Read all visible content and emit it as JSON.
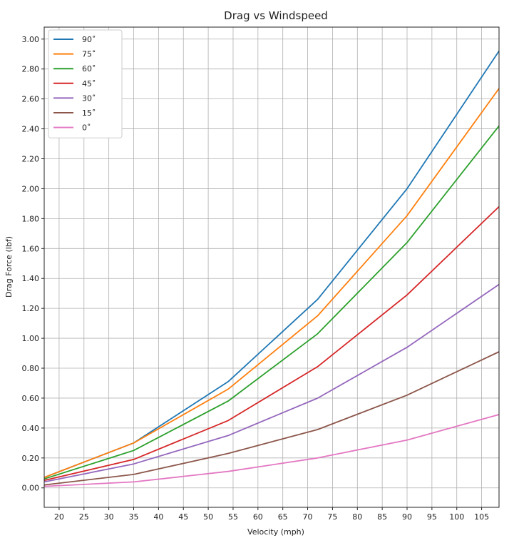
{
  "chart_data": {
    "type": "line",
    "title": "Drag vs Windspeed",
    "xlabel": "Velocity (mph)",
    "ylabel": "Drag Force (lbf)",
    "xlim": [
      17,
      108.5
    ],
    "ylim": [
      -0.13,
      3.08
    ],
    "xticks": [
      20,
      25,
      30,
      35,
      40,
      45,
      50,
      55,
      60,
      65,
      70,
      75,
      80,
      85,
      90,
      95,
      100,
      105
    ],
    "yticks": [
      0.0,
      0.2,
      0.4,
      0.6,
      0.8,
      1.0,
      1.2,
      1.4,
      1.6,
      1.8,
      2.0,
      2.2,
      2.4,
      2.6,
      2.8,
      3.0
    ],
    "ytick_labels": [
      "0.00",
      "0.20",
      "0.40",
      "0.60",
      "0.80",
      "1.00",
      "1.20",
      "1.40",
      "1.60",
      "1.80",
      "2.00",
      "2.20",
      "2.40",
      "2.60",
      "2.80",
      "3.00"
    ],
    "grid": true,
    "legend_position": "top-left",
    "x": [
      17,
      35,
      54,
      72,
      90,
      108.5
    ],
    "series": [
      {
        "name": "90˚",
        "color": "#1f77b4",
        "values": [
          0.07,
          0.3,
          0.71,
          1.26,
          2.0,
          2.92
        ]
      },
      {
        "name": "75˚",
        "color": "#ff7f0e",
        "values": [
          0.07,
          0.3,
          0.66,
          1.15,
          1.82,
          2.67
        ]
      },
      {
        "name": "60˚",
        "color": "#2ca02c",
        "values": [
          0.06,
          0.25,
          0.58,
          1.03,
          1.64,
          2.42
        ]
      },
      {
        "name": "45˚",
        "color": "#d62728",
        "values": [
          0.05,
          0.19,
          0.45,
          0.81,
          1.29,
          1.88
        ]
      },
      {
        "name": "30˚",
        "color": "#9467bd",
        "values": [
          0.04,
          0.16,
          0.35,
          0.6,
          0.94,
          1.36
        ]
      },
      {
        "name": "15˚",
        "color": "#8c564b",
        "values": [
          0.02,
          0.09,
          0.23,
          0.39,
          0.62,
          0.91
        ]
      },
      {
        "name": "0˚",
        "color": "#e377c2",
        "values": [
          0.01,
          0.04,
          0.11,
          0.2,
          0.32,
          0.49
        ]
      }
    ]
  }
}
